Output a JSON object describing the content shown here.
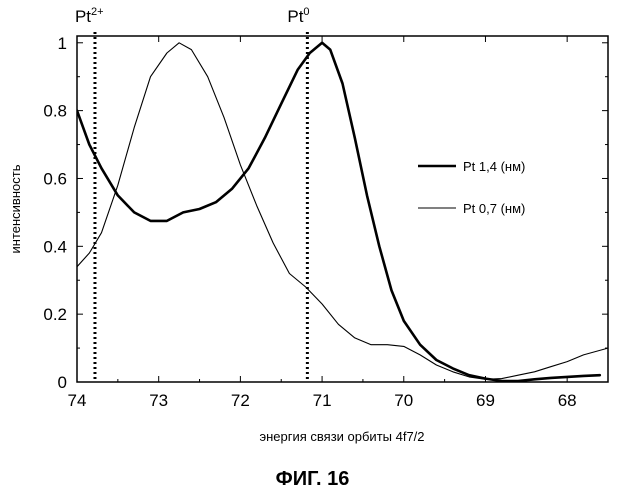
{
  "caption": "ФИГ. 16",
  "chart_data": {
    "type": "line",
    "xlabel": "энергия связи орбиты 4f7/2",
    "ylabel": "интенсивность",
    "xlim": [
      74,
      67.5
    ],
    "ylim": [
      0,
      1.02
    ],
    "x_reversed": true,
    "x_ticks": [
      74,
      73,
      72,
      71,
      70,
      69,
      68
    ],
    "x_tick_labels": [
      "74",
      "73",
      "72",
      "71",
      "70",
      "69",
      "68"
    ],
    "y_ticks": [
      0,
      0.2,
      0.4,
      0.6,
      0.8,
      1
    ],
    "y_tick_labels": [
      "0",
      "0.2",
      "0.4",
      "0.6",
      "0.8",
      "1"
    ],
    "legend_position": "right",
    "markers": [
      {
        "x": 73.78,
        "base": "Pt",
        "sup": "2+",
        "style": "dotted"
      },
      {
        "x": 71.18,
        "base": "Pt",
        "sup": "0",
        "style": "dotted"
      }
    ],
    "series": [
      {
        "name": "Pt 1,4 (нм)",
        "style": "thick",
        "points": [
          [
            74.0,
            0.8
          ],
          [
            73.85,
            0.7
          ],
          [
            73.7,
            0.63
          ],
          [
            73.5,
            0.55
          ],
          [
            73.3,
            0.5
          ],
          [
            73.1,
            0.475
          ],
          [
            72.9,
            0.475
          ],
          [
            72.7,
            0.5
          ],
          [
            72.5,
            0.51
          ],
          [
            72.3,
            0.53
          ],
          [
            72.1,
            0.57
          ],
          [
            71.9,
            0.63
          ],
          [
            71.7,
            0.72
          ],
          [
            71.5,
            0.82
          ],
          [
            71.3,
            0.92
          ],
          [
            71.15,
            0.97
          ],
          [
            71.0,
            1.0
          ],
          [
            70.9,
            0.98
          ],
          [
            70.75,
            0.88
          ],
          [
            70.6,
            0.72
          ],
          [
            70.45,
            0.55
          ],
          [
            70.3,
            0.4
          ],
          [
            70.15,
            0.27
          ],
          [
            70.0,
            0.18
          ],
          [
            69.8,
            0.11
          ],
          [
            69.6,
            0.065
          ],
          [
            69.4,
            0.04
          ],
          [
            69.2,
            0.02
          ],
          [
            69.0,
            0.01
          ],
          [
            68.8,
            0.003
          ],
          [
            68.6,
            0.003
          ],
          [
            68.4,
            0.008
          ],
          [
            68.2,
            0.012
          ],
          [
            68.0,
            0.015
          ],
          [
            67.8,
            0.018
          ],
          [
            67.6,
            0.02
          ]
        ]
      },
      {
        "name": "Pt 0,7 (нм)",
        "style": "thin",
        "points": [
          [
            74.0,
            0.34
          ],
          [
            73.85,
            0.38
          ],
          [
            73.7,
            0.44
          ],
          [
            73.5,
            0.58
          ],
          [
            73.3,
            0.75
          ],
          [
            73.1,
            0.9
          ],
          [
            72.9,
            0.97
          ],
          [
            72.75,
            1.0
          ],
          [
            72.6,
            0.98
          ],
          [
            72.4,
            0.9
          ],
          [
            72.2,
            0.78
          ],
          [
            72.0,
            0.64
          ],
          [
            71.8,
            0.52
          ],
          [
            71.6,
            0.41
          ],
          [
            71.4,
            0.32
          ],
          [
            71.2,
            0.28
          ],
          [
            71.0,
            0.23
          ],
          [
            70.8,
            0.17
          ],
          [
            70.6,
            0.13
          ],
          [
            70.4,
            0.11
          ],
          [
            70.2,
            0.11
          ],
          [
            70.0,
            0.105
          ],
          [
            69.8,
            0.08
          ],
          [
            69.6,
            0.05
          ],
          [
            69.4,
            0.03
          ],
          [
            69.2,
            0.015
          ],
          [
            69.0,
            0.008
          ],
          [
            68.8,
            0.01
          ],
          [
            68.6,
            0.02
          ],
          [
            68.4,
            0.03
          ],
          [
            68.2,
            0.045
          ],
          [
            68.0,
            0.06
          ],
          [
            67.8,
            0.08
          ],
          [
            67.5,
            0.1
          ]
        ]
      }
    ]
  }
}
